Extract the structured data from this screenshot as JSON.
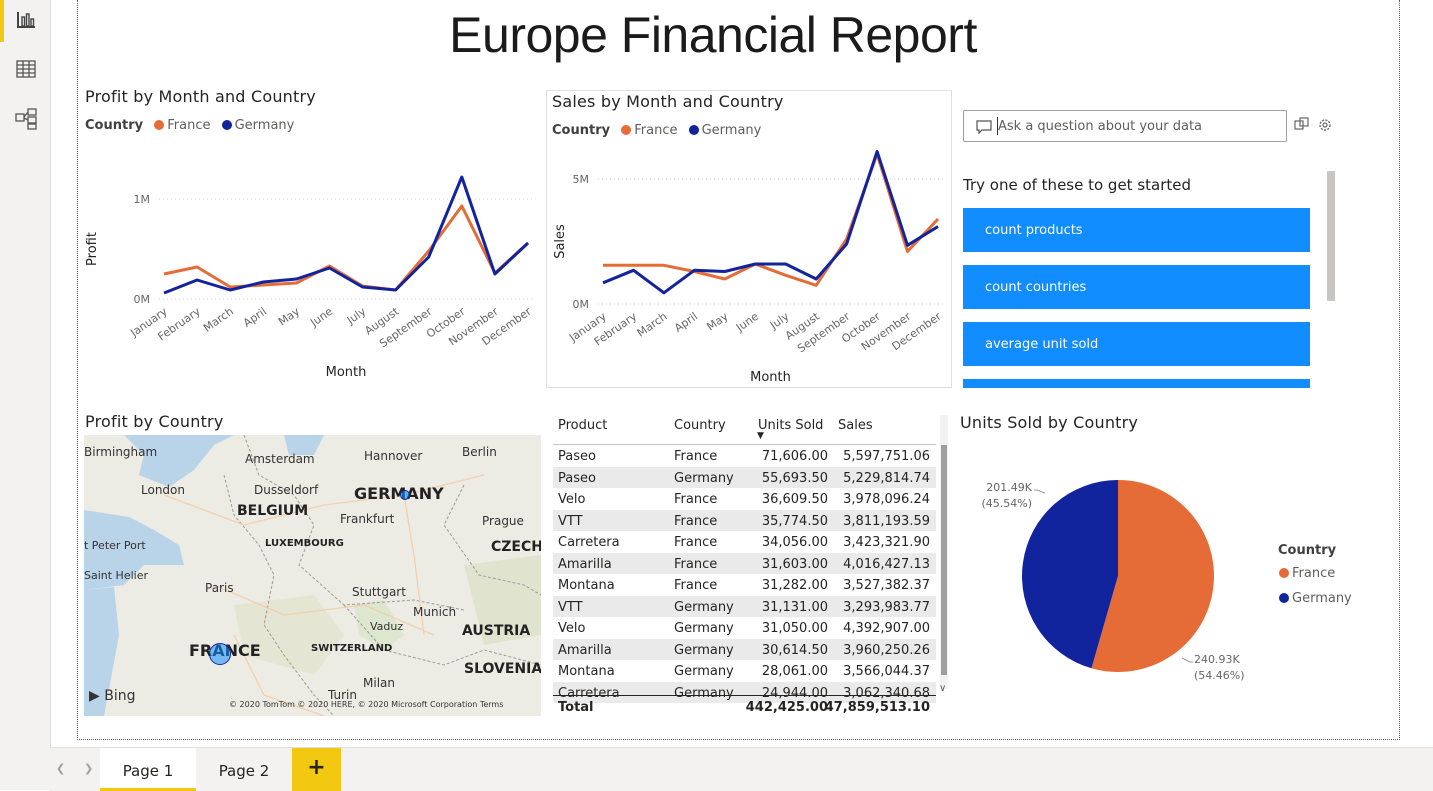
{
  "report": {
    "title": "Europe Financial Report"
  },
  "nav": [
    {
      "name": "report-view-icon"
    },
    {
      "name": "data-view-icon"
    },
    {
      "name": "model-view-icon"
    }
  ],
  "colors": {
    "france": "#e66c37",
    "germany": "#12239e",
    "accent": "#118dff",
    "tab_add": "#f2c811"
  },
  "profit_chart": {
    "title": "Profit by Month and Country",
    "legend_title": "Country",
    "legend": [
      "France",
      "Germany"
    ],
    "xlabel": "Month",
    "ylabel": "Profit",
    "yticks": [
      "1M",
      "0M"
    ]
  },
  "sales_chart": {
    "title": "Sales by Month and Country",
    "legend_title": "Country",
    "legend": [
      "France",
      "Germany"
    ],
    "xlabel": "Month",
    "ylabel": "Sales",
    "yticks": [
      "5M",
      "0M"
    ]
  },
  "chart_data": [
    {
      "type": "line",
      "title": "Profit by Month and Country",
      "xlabel": "Month",
      "ylabel": "Profit",
      "ylim": [
        0,
        1000000
      ],
      "categories": [
        "January",
        "February",
        "March",
        "April",
        "May",
        "June",
        "July",
        "August",
        "September",
        "October",
        "November",
        "December"
      ],
      "series": [
        {
          "name": "France",
          "color": "#e66c37",
          "values": [
            250000,
            320000,
            120000,
            140000,
            160000,
            330000,
            130000,
            90000,
            480000,
            930000,
            260000,
            560000
          ]
        },
        {
          "name": "Germany",
          "color": "#12239e",
          "values": [
            60000,
            190000,
            90000,
            170000,
            200000,
            310000,
            120000,
            90000,
            420000,
            1220000,
            250000,
            560000
          ]
        }
      ]
    },
    {
      "type": "line",
      "title": "Sales by Month and Country",
      "xlabel": "Month",
      "ylabel": "Sales",
      "ylim": [
        0,
        5000000
      ],
      "categories": [
        "January",
        "February",
        "March",
        "April",
        "May",
        "June",
        "July",
        "August",
        "September",
        "October",
        "November",
        "December"
      ],
      "series": [
        {
          "name": "France",
          "color": "#e66c37",
          "values": [
            1550000,
            1550000,
            1550000,
            1300000,
            1000000,
            1600000,
            1150000,
            750000,
            2600000,
            6000000,
            2100000,
            3400000
          ]
        },
        {
          "name": "Germany",
          "color": "#12239e",
          "values": [
            850000,
            1350000,
            450000,
            1350000,
            1300000,
            1600000,
            1600000,
            1000000,
            2400000,
            6100000,
            2350000,
            3100000
          ]
        }
      ]
    },
    {
      "type": "pie",
      "title": "Units Sold by Country",
      "legend_title": "Country",
      "categories": [
        "France",
        "Germany"
      ],
      "values": [
        240930,
        201490
      ],
      "labels": [
        {
          "value": "240.93K",
          "pct": "(54.46%)"
        },
        {
          "value": "201.49K",
          "pct": "(45.54%)"
        }
      ]
    },
    {
      "type": "table",
      "columns": [
        "Product",
        "Country",
        "Units Sold",
        "Sales"
      ],
      "rows": [
        [
          "Paseo",
          "France",
          "71,606.00",
          "5,597,751.06"
        ],
        [
          "Paseo",
          "Germany",
          "55,693.50",
          "5,229,814.74"
        ],
        [
          "Velo",
          "France",
          "36,609.50",
          "3,978,096.24"
        ],
        [
          "VTT",
          "France",
          "35,774.50",
          "3,811,193.59"
        ],
        [
          "Carretera",
          "France",
          "34,056.00",
          "3,423,321.90"
        ],
        [
          "Amarilla",
          "France",
          "31,603.00",
          "4,016,427.13"
        ],
        [
          "Montana",
          "France",
          "31,282.00",
          "3,527,382.37"
        ],
        [
          "VTT",
          "Germany",
          "31,131.00",
          "3,293,983.77"
        ],
        [
          "Velo",
          "Germany",
          "31,050.00",
          "4,392,907.00"
        ],
        [
          "Amarilla",
          "Germany",
          "30,614.50",
          "3,960,250.26"
        ],
        [
          "Montana",
          "Germany",
          "28,061.00",
          "3,566,044.37"
        ],
        [
          "Carretera",
          "Germany",
          "24,944.00",
          "3,062,340.68"
        ]
      ],
      "total": [
        "Total",
        "",
        "442,425.00",
        "47,859,513.10"
      ]
    }
  ],
  "qna": {
    "placeholder": "Ask a question about your data",
    "prompt": "Try one of these to get started",
    "suggestions": [
      "count products",
      "count countries",
      "average unit sold"
    ]
  },
  "map": {
    "title": "Profit by Country",
    "labels": [
      "Birmingham",
      "London",
      "Amsterdam",
      "Hannover",
      "Berlin",
      "Dusseldorf",
      "GERMANY",
      "BELGIUM",
      "Frankfurt",
      "Prague",
      "LUXEMBOURG",
      "CZECHI",
      "t Peter Port",
      "Saint Helier",
      "Paris",
      "Stuttgart",
      "Munich",
      "Vaduz",
      "AUSTRIA",
      "FRANCE",
      "SWITZERLAND",
      "SLOVENIA",
      "Milan",
      "Turin"
    ],
    "logo": "Bing",
    "copyright": "© 2020 TomTom © 2020 HERE, © 2020 Microsoft Corporation Terms"
  },
  "pie_legend": {
    "title": "Country",
    "items": [
      "France",
      "Germany"
    ]
  },
  "tabs": [
    "Page 1",
    "Page 2"
  ],
  "add_tab": "+"
}
